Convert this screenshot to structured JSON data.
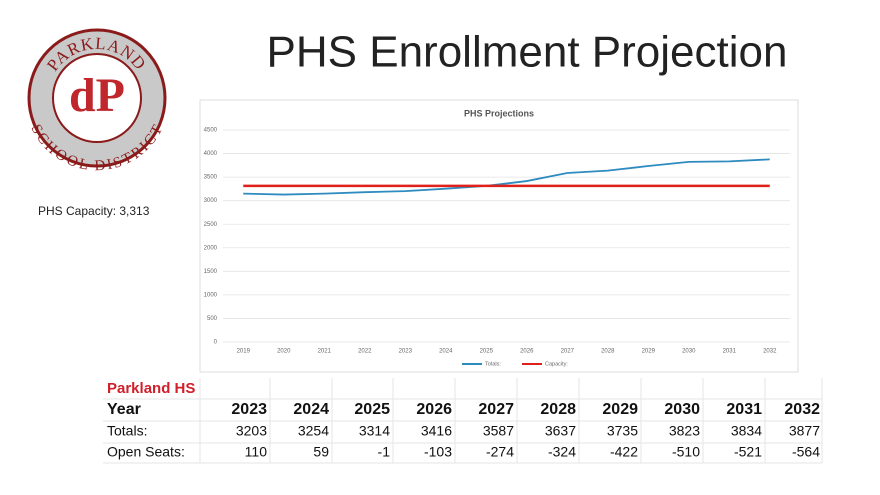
{
  "logo": {
    "top": "PARKLAND",
    "bottom": "SCHOOL DISTRICT",
    "mark": "dP"
  },
  "title": "PHS Enrollment Projection",
  "capacity_note": "PHS Capacity: 3,313",
  "chart_data": {
    "type": "line",
    "title": "PHS Projections",
    "categories": [
      "2019",
      "2020",
      "2021",
      "2022",
      "2023",
      "2024",
      "2025",
      "2026",
      "2027",
      "2028",
      "2029",
      "2030",
      "2031",
      "2032"
    ],
    "series": [
      {
        "name": "Totals:",
        "color": "#2e8bc0",
        "values": [
          3150,
          3130,
          3150,
          3180,
          3203,
          3254,
          3314,
          3416,
          3587,
          3637,
          3735,
          3823,
          3834,
          3877
        ]
      },
      {
        "name": "Capacity:",
        "color": "#e0201b",
        "values": [
          3313,
          3313,
          3313,
          3313,
          3313,
          3313,
          3313,
          3313,
          3313,
          3313,
          3313,
          3313,
          3313,
          3313
        ]
      }
    ],
    "ylim": [
      0,
      4500
    ],
    "yticks": [
      0,
      500,
      1000,
      1500,
      2000,
      2500,
      3000,
      3500,
      4000,
      4500
    ],
    "grid": true,
    "legend": "bottom"
  },
  "table": {
    "caption": "Parkland HS",
    "rows": [
      [
        "Year",
        2023,
        2024,
        2025,
        2026,
        2027,
        2028,
        2029,
        2030,
        2031,
        2032
      ],
      [
        "Totals:",
        3203,
        3254,
        3314,
        3416,
        3587,
        3637,
        3735,
        3823,
        3834,
        3877
      ],
      [
        "Open Seats:",
        110,
        59,
        -1,
        -103,
        -274,
        -324,
        -422,
        -510,
        -521,
        -564
      ]
    ]
  }
}
